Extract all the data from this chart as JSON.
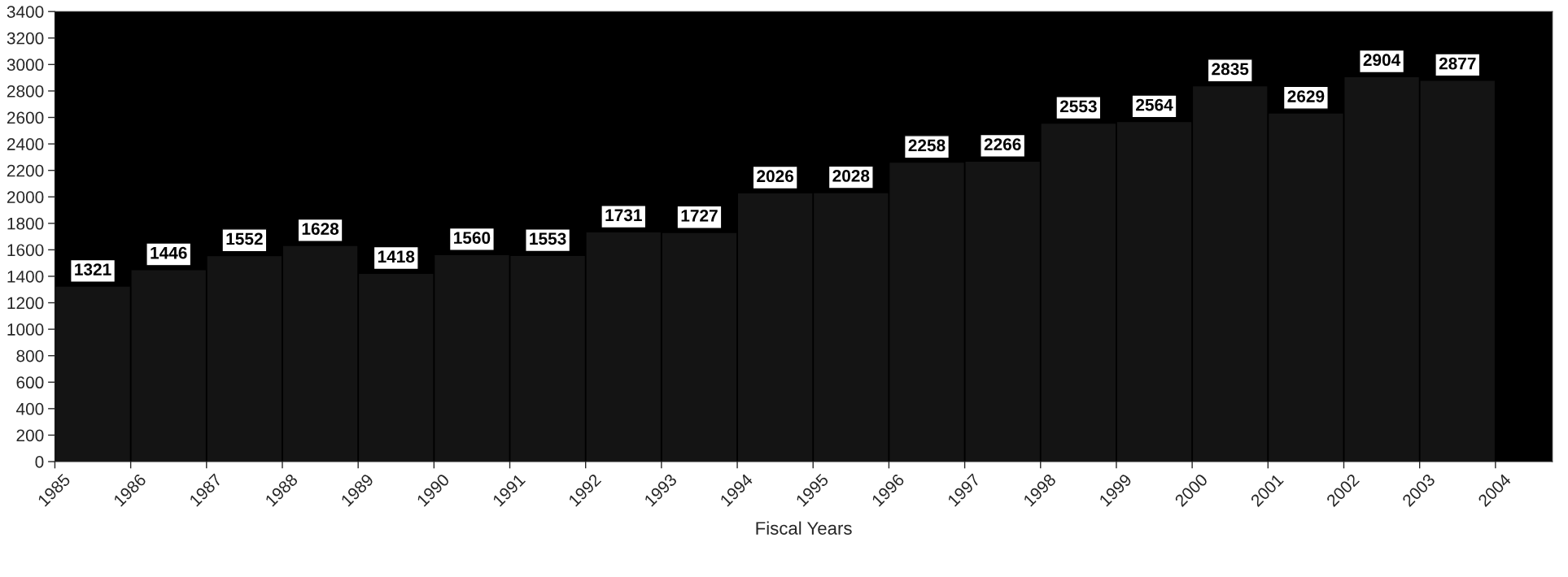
{
  "chart_data": {
    "type": "bar",
    "xlabel": "Fiscal Years",
    "x": [
      1985.5,
      1986.5,
      1987.5,
      1988.5,
      1989.5,
      1990.5,
      1991.5,
      1992.5,
      1993.5,
      1994.5,
      1995.5,
      1996.5,
      1997.5,
      1998.5,
      1999.5,
      2000.5,
      2001.5,
      2002.5,
      2003.5
    ],
    "values": [
      1321,
      1446,
      1552,
      1628,
      1418,
      1560,
      1553,
      1731,
      1727,
      2026,
      2028,
      2258,
      2266,
      2553,
      2564,
      2835,
      2629,
      2904,
      2877
    ],
    "color": "#141414",
    "data_labels": true,
    "grid": false,
    "legend": false,
    "xlim": [
      1985,
      2004.75
    ],
    "xticks": [
      1985,
      1986,
      1987,
      1988,
      1989,
      1990,
      1991,
      1992,
      1993,
      1994,
      1995,
      1996,
      1997,
      1998,
      1999,
      2000,
      2001,
      2002,
      2003,
      2004
    ],
    "ylim": [
      0,
      3400
    ],
    "yticks": [
      0,
      200,
      400,
      600,
      800,
      1000,
      1200,
      1400,
      1600,
      1800,
      2000,
      2200,
      2400,
      2600,
      2800,
      3000,
      3200,
      3400
    ]
  }
}
